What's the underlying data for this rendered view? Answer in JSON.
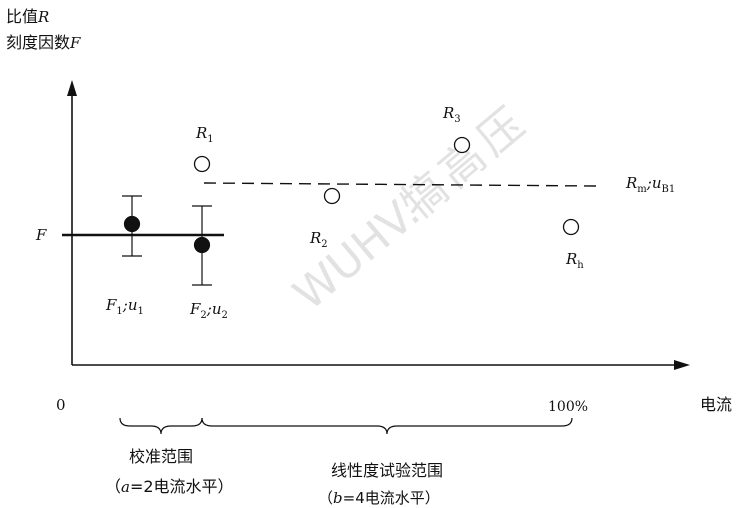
{
  "watermark": [
    "WUHV.",
    "犒",
    "高",
    "压"
  ],
  "axes": {
    "ylabel_line1": "比值",
    "ylabel_line1_var": "R",
    "ylabel_line2": "刻度因数",
    "ylabel_line2_var": "F",
    "origin": "0",
    "x_end": "100%",
    "xlabel": "电流"
  },
  "reference": {
    "label": "F"
  },
  "points": {
    "F1": {
      "var": "F",
      "sub": "1",
      "sep": ";",
      "unc_var": "u",
      "unc_sub": "1"
    },
    "F2": {
      "var": "F",
      "sub": "2",
      "sep": ";",
      "unc_var": "u",
      "unc_sub": "2"
    },
    "R1": {
      "var": "R",
      "sub": "1"
    },
    "R2": {
      "var": "R",
      "sub": "2"
    },
    "R3": {
      "var": "R",
      "sub": "3"
    },
    "Rh": {
      "var": "R",
      "sub": "h"
    },
    "Rm": {
      "var": "R",
      "sub": "m",
      "sep": ";",
      "unc_var": "u",
      "unc_sub": "B1"
    }
  },
  "braces": {
    "calibration": {
      "label": "校准范围",
      "note_open": "（",
      "note_var": "a",
      "note_text": "=2电流水平）"
    },
    "linearity": {
      "label": "线性度试验范围",
      "note_open": "（",
      "note_var": "b",
      "note_text": "=4电流水平）"
    }
  }
}
